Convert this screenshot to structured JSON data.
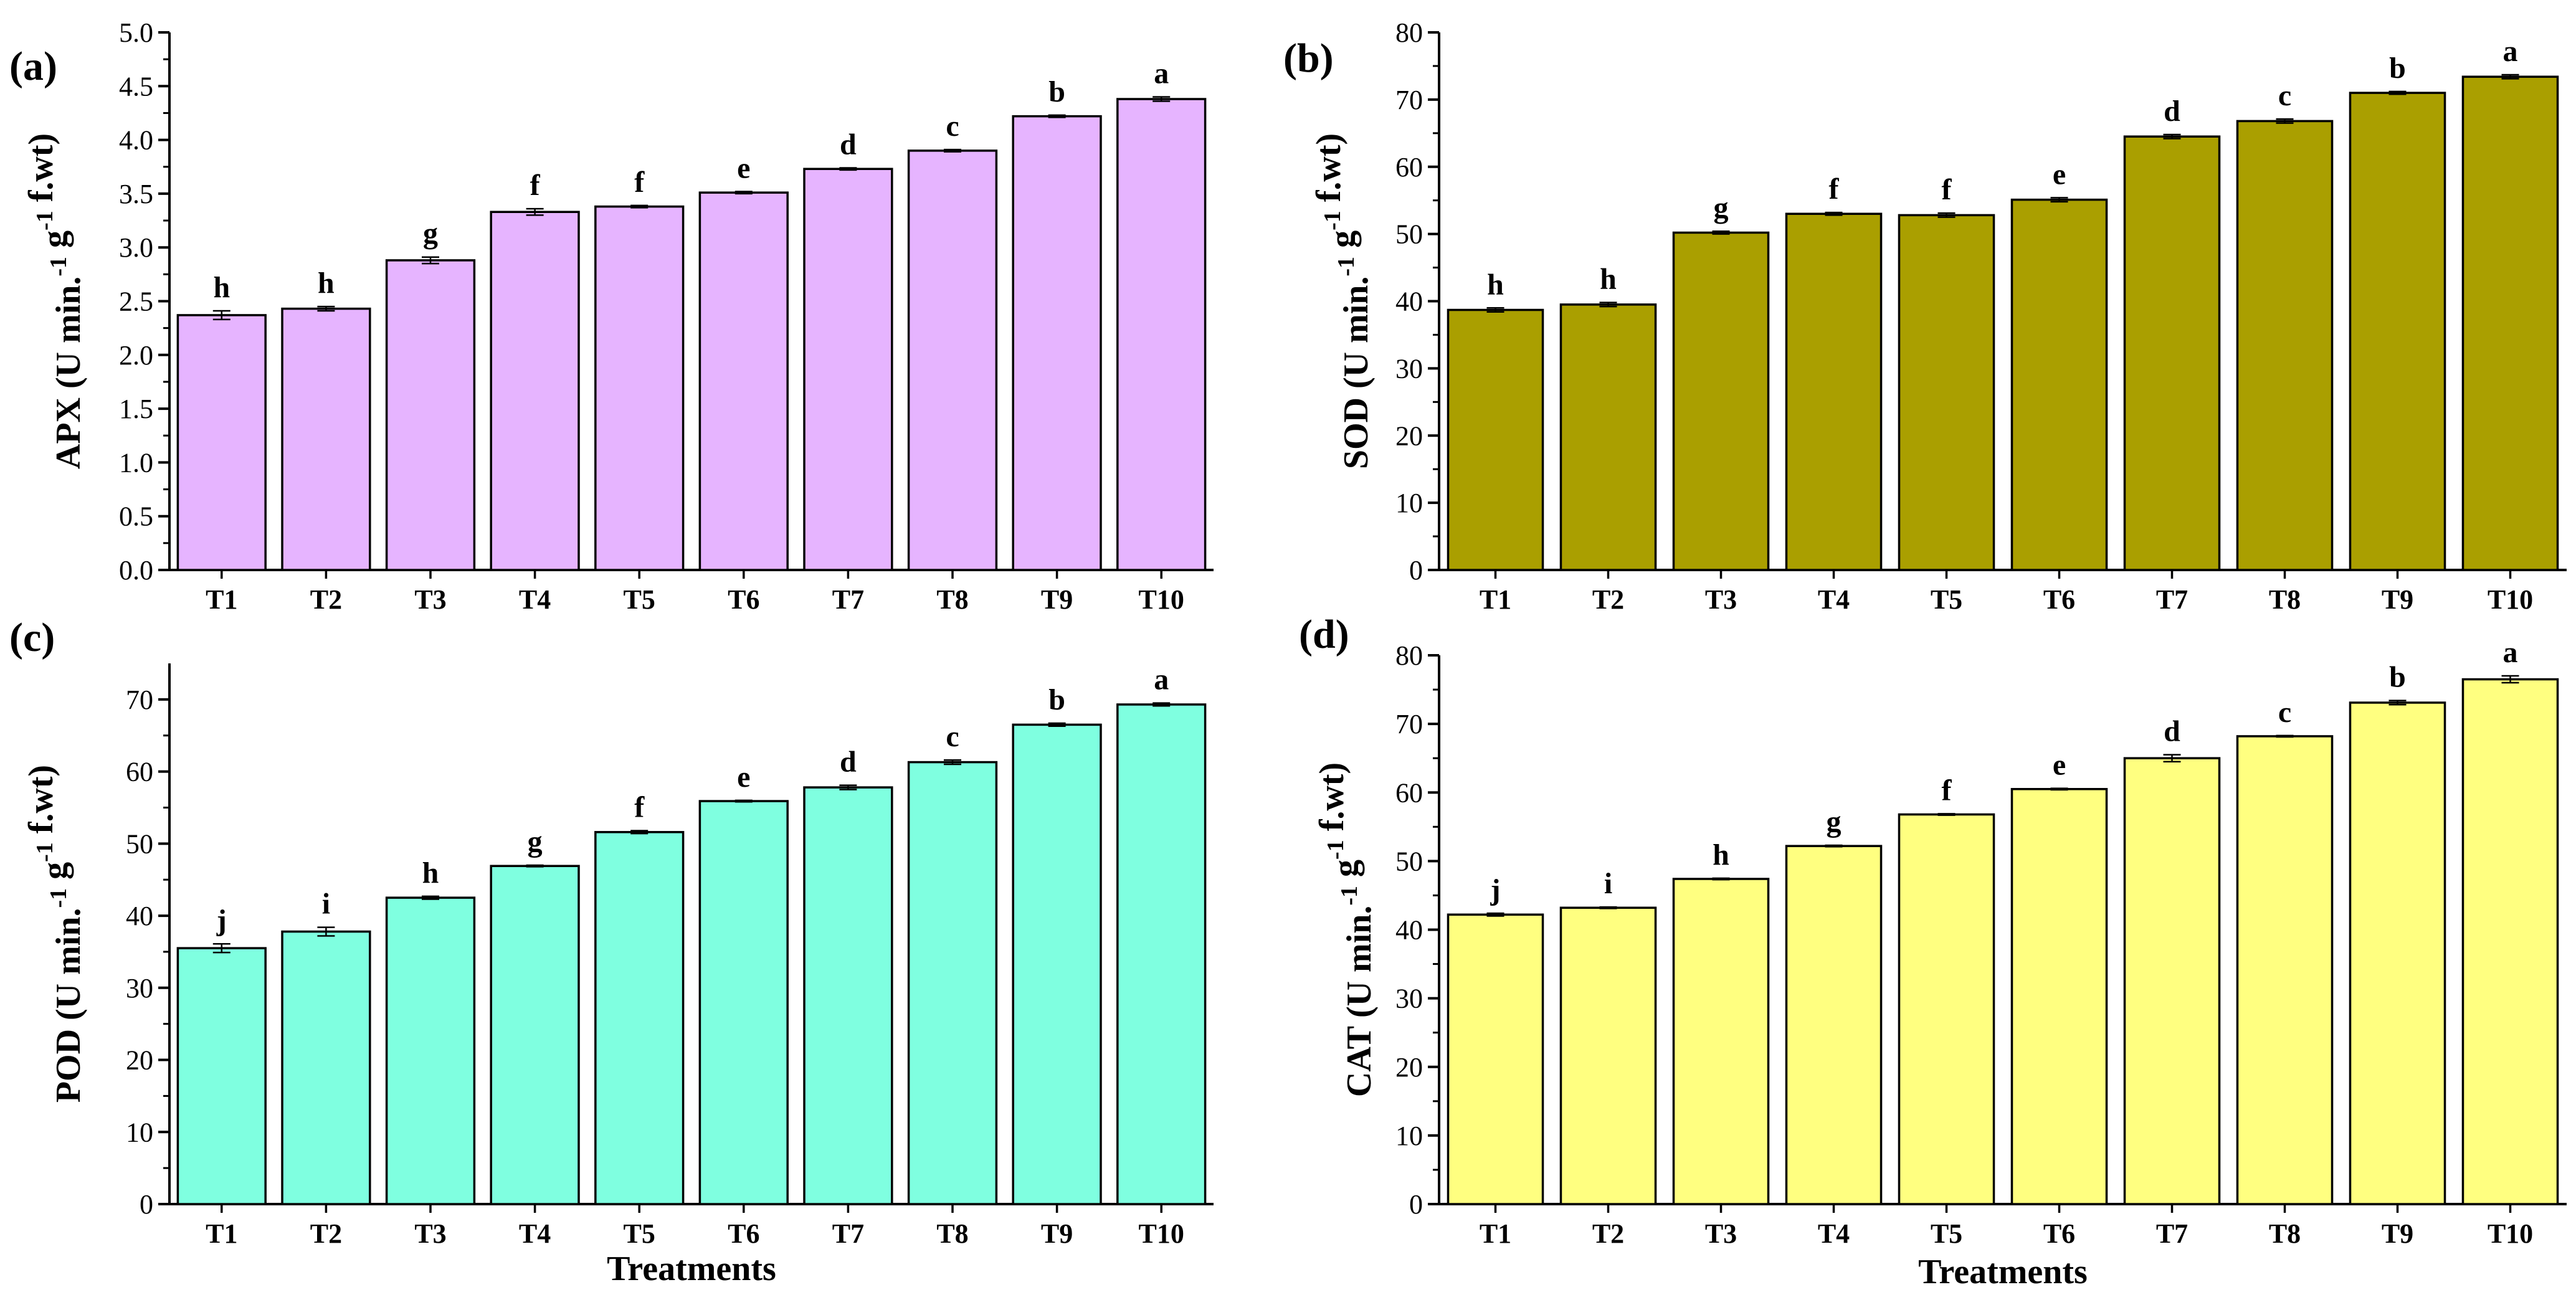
{
  "chart_data": [
    {
      "type": "bar",
      "panel": "(a)",
      "color": "#E6B4FF",
      "ylabel_main": "APX (U min.",
      "ylabel_sup1": "-1",
      "ylabel_mid": " g",
      "ylabel_sup2": "-1",
      "ylabel_end": " f.wt)",
      "xlabel": "",
      "ylim": [
        0,
        5.0
      ],
      "ytick_step": 0.5,
      "ytick_decimals": 1,
      "categories": [
        "T1",
        "T2",
        "T3",
        "T4",
        "T5",
        "T6",
        "T7",
        "T8",
        "T9",
        "T10"
      ],
      "values": [
        2.37,
        2.43,
        2.88,
        3.33,
        3.38,
        3.51,
        3.73,
        3.9,
        4.22,
        4.38
      ],
      "errors": [
        0.04,
        0.02,
        0.03,
        0.03,
        0.01,
        0.01,
        0.01,
        0.01,
        0.01,
        0.02
      ],
      "letters": [
        "h",
        "h",
        "g",
        "f",
        "f",
        "e",
        "d",
        "c",
        "b",
        "a"
      ]
    },
    {
      "type": "bar",
      "panel": "(b)",
      "color": "#AA9F00",
      "ylabel_main": "SOD (U min.",
      "ylabel_sup1": "-1",
      "ylabel_mid": " g",
      "ylabel_sup2": "-1",
      "ylabel_end": " f.wt)",
      "xlabel": "",
      "ylim": [
        0,
        80
      ],
      "ytick_step": 10,
      "ytick_decimals": 0,
      "categories": [
        "T1",
        "T2",
        "T3",
        "T4",
        "T5",
        "T6",
        "T7",
        "T8",
        "T9",
        "T10"
      ],
      "values": [
        38.7,
        39.5,
        50.2,
        53.0,
        52.8,
        55.1,
        64.5,
        66.8,
        71.0,
        73.4
      ],
      "errors": [
        0.3,
        0.3,
        0.2,
        0.2,
        0.3,
        0.3,
        0.3,
        0.3,
        0.2,
        0.3
      ],
      "letters": [
        "h",
        "h",
        "g",
        "f",
        "f",
        "e",
        "d",
        "c",
        "b",
        "a"
      ]
    },
    {
      "type": "bar",
      "panel": "(c)",
      "color": "#7FFFE0",
      "ylabel_main": "POD (U min.",
      "ylabel_sup1": "-1",
      "ylabel_mid": " g",
      "ylabel_sup2": "-1",
      "ylabel_end": " f.wt)",
      "xlabel": "Treatments",
      "ylim": [
        0,
        75
      ],
      "ytick_step": 10,
      "ytick_max": 70,
      "ytick_decimals": 0,
      "categories": [
        "T1",
        "T2",
        "T3",
        "T4",
        "T5",
        "T6",
        "T7",
        "T8",
        "T9",
        "T10"
      ],
      "values": [
        35.5,
        37.8,
        42.5,
        46.9,
        51.6,
        55.9,
        57.8,
        61.3,
        66.5,
        69.3
      ],
      "errors": [
        0.6,
        0.6,
        0.2,
        0.1,
        0.2,
        0.1,
        0.3,
        0.3,
        0.2,
        0.2
      ],
      "letters": [
        "j",
        "i",
        "h",
        "g",
        "f",
        "e",
        "d",
        "c",
        "b",
        "a"
      ]
    },
    {
      "type": "bar",
      "panel": "(d)",
      "color": "#FFFF80",
      "ylabel_main": "CAT (U min.",
      "ylabel_sup1": "-1",
      "ylabel_mid": " g",
      "ylabel_sup2": "-1",
      "ylabel_end": " f.wt)",
      "xlabel": "Treatments",
      "ylim": [
        0,
        80
      ],
      "ytick_step": 10,
      "ytick_decimals": 0,
      "categories": [
        "T1",
        "T2",
        "T3",
        "T4",
        "T5",
        "T6",
        "T7",
        "T8",
        "T9",
        "T10"
      ],
      "values": [
        42.2,
        43.2,
        47.4,
        52.2,
        56.8,
        60.5,
        65.0,
        68.2,
        73.1,
        76.5
      ],
      "errors": [
        0.2,
        0.1,
        0.1,
        0.1,
        0.1,
        0.1,
        0.5,
        0.1,
        0.3,
        0.5
      ],
      "letters": [
        "j",
        "i",
        "h",
        "g",
        "f",
        "e",
        "d",
        "c",
        "b",
        "a"
      ]
    }
  ]
}
